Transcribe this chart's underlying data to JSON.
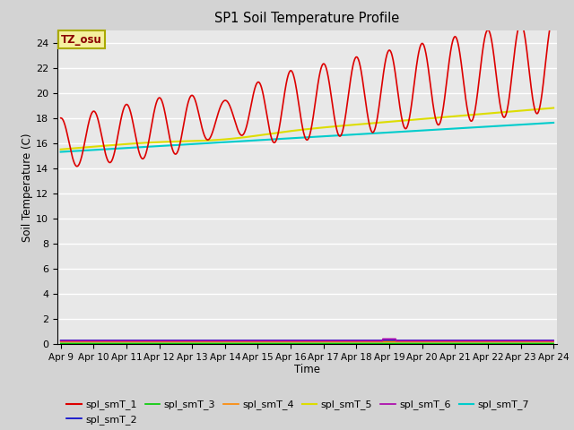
{
  "title": "SP1 Soil Temperature Profile",
  "xlabel": "Time",
  "ylabel": "Soil Temperature (C)",
  "ylim": [
    0,
    25
  ],
  "yticks": [
    0,
    2,
    4,
    6,
    8,
    10,
    12,
    14,
    16,
    18,
    20,
    22,
    24
  ],
  "tz_label": "TZ_osu",
  "fig_bg_color": "#d3d3d3",
  "plot_bg_color": "#e8e8e8",
  "series": {
    "spl_smT_1": {
      "color": "#dd0000",
      "linewidth": 1.2
    },
    "spl_smT_2": {
      "color": "#0000cc",
      "linewidth": 1.2
    },
    "spl_smT_3": {
      "color": "#00cc00",
      "linewidth": 1.2
    },
    "spl_smT_4": {
      "color": "#ff8800",
      "linewidth": 1.2
    },
    "spl_smT_5": {
      "color": "#dddd00",
      "linewidth": 1.5
    },
    "spl_smT_6": {
      "color": "#aa00aa",
      "linewidth": 1.2
    },
    "spl_smT_7": {
      "color": "#00cccc",
      "linewidth": 1.5
    }
  },
  "xtick_labels": [
    "Apr 9",
    "Apr 10",
    "Apr 11",
    "Apr 12",
    "Apr 13",
    "Apr 14",
    "Apr 15",
    "Apr 16",
    "Apr 17",
    "Apr 18",
    "Apr 19",
    "Apr 20",
    "Apr 21",
    "Apr 22",
    "Apr 23",
    "Apr 24"
  ],
  "xtick_positions": [
    0,
    1,
    2,
    3,
    4,
    5,
    6,
    7,
    8,
    9,
    10,
    11,
    12,
    13,
    14,
    15
  ],
  "legend_labels": [
    "spl_smT_1",
    "spl_smT_2",
    "spl_smT_3",
    "spl_smT_4",
    "spl_smT_5",
    "spl_smT_6",
    "spl_smT_7"
  ]
}
